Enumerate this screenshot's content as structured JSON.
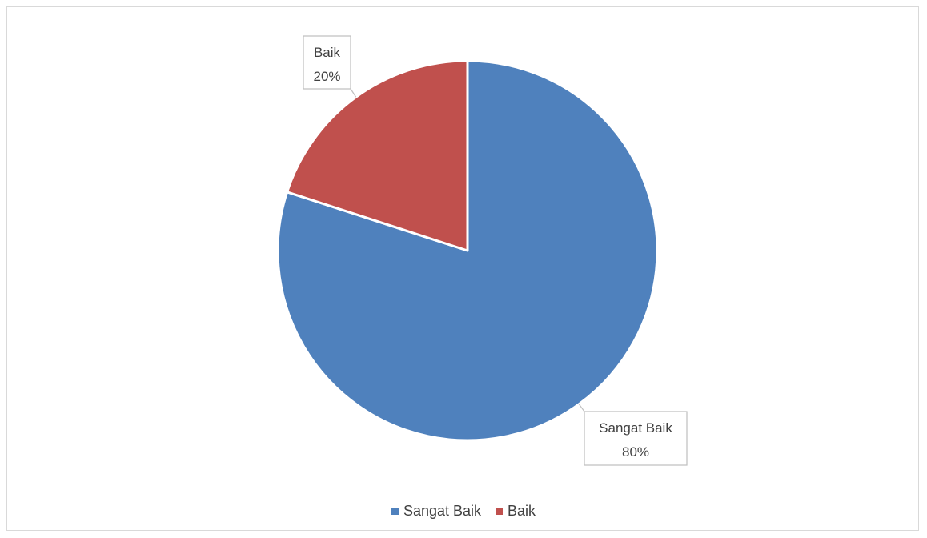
{
  "chart_data": {
    "type": "pie",
    "title": "",
    "slices": [
      {
        "label": "Sangat Baik",
        "value": 80,
        "display": "80%",
        "color": "#4f81bd"
      },
      {
        "label": "Baik",
        "value": 20,
        "display": "20%",
        "color": "#c0504d"
      }
    ],
    "legend_position": "bottom",
    "data_labels": "callout"
  },
  "legend": {
    "items": [
      {
        "label": "Sangat Baik",
        "color": "#4f81bd"
      },
      {
        "label": "Baik",
        "color": "#c0504d"
      }
    ]
  }
}
